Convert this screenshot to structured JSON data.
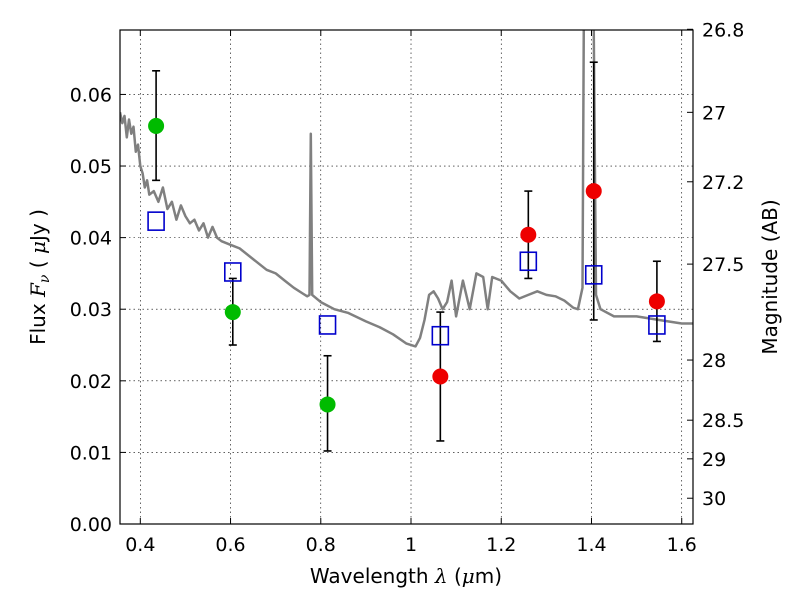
{
  "chart_data": {
    "type": "scatter",
    "title": "",
    "xlabel": "Wavelength  λ (μm)",
    "ylabel": "Flux  F_ν  ( μJy )",
    "y2label": "Magnitude (AB)",
    "xlim": [
      0.355,
      1.625
    ],
    "ylim": [
      0.0,
      0.069
    ],
    "grid": true,
    "x_ticks": [
      0.4,
      0.6,
      0.8,
      1.0,
      1.2,
      1.4,
      1.6
    ],
    "x_tick_labels": [
      "0.4",
      "0.6",
      "0.8",
      "1",
      "1.2",
      "1.4",
      "1.6"
    ],
    "y_ticks": [
      0.0,
      0.01,
      0.02,
      0.03,
      0.04,
      0.05,
      0.06
    ],
    "y_tick_labels": [
      "0.00",
      "0.01",
      "0.02",
      "0.03",
      "0.04",
      "0.05",
      "0.06"
    ],
    "y2_ticks": [
      {
        "label": "26.8",
        "flux": 0.0691
      },
      {
        "label": "27",
        "flux": 0.0575
      },
      {
        "label": "27.2",
        "flux": 0.0478
      },
      {
        "label": "27.5",
        "flux": 0.0363
      },
      {
        "label": "28",
        "flux": 0.0229
      },
      {
        "label": "28.5",
        "flux": 0.0145
      },
      {
        "label": "29",
        "flux": 0.0091
      },
      {
        "label": "30",
        "flux": 0.0036
      }
    ],
    "colors": {
      "sed": "#808080",
      "model_box": "#0000cc",
      "optical": "#00bb00",
      "nir": "#ee0000",
      "errorbar": "#000000"
    },
    "series": [
      {
        "type": "line",
        "points": [
          [
            0.355,
            0.0575
          ],
          [
            0.36,
            0.056
          ],
          [
            0.365,
            0.057
          ],
          [
            0.37,
            0.054
          ],
          [
            0.375,
            0.0565
          ],
          [
            0.38,
            0.0545
          ],
          [
            0.385,
            0.0555
          ],
          [
            0.39,
            0.052
          ],
          [
            0.395,
            0.053
          ],
          [
            0.4,
            0.05
          ],
          [
            0.405,
            0.049
          ],
          [
            0.41,
            0.047
          ],
          [
            0.415,
            0.048
          ],
          [
            0.42,
            0.046
          ],
          [
            0.43,
            0.0465
          ],
          [
            0.44,
            0.045
          ],
          [
            0.45,
            0.047
          ],
          [
            0.46,
            0.044
          ],
          [
            0.47,
            0.045
          ],
          [
            0.48,
            0.0425
          ],
          [
            0.49,
            0.0445
          ],
          [
            0.5,
            0.043
          ],
          [
            0.51,
            0.042
          ],
          [
            0.52,
            0.0425
          ],
          [
            0.53,
            0.041
          ],
          [
            0.54,
            0.042
          ],
          [
            0.55,
            0.04
          ],
          [
            0.56,
            0.0415
          ],
          [
            0.57,
            0.04
          ],
          [
            0.58,
            0.0395
          ],
          [
            0.6,
            0.039
          ],
          [
            0.62,
            0.0385
          ],
          [
            0.65,
            0.037
          ],
          [
            0.68,
            0.0355
          ],
          [
            0.7,
            0.035
          ],
          [
            0.72,
            0.034
          ],
          [
            0.74,
            0.033
          ],
          [
            0.76,
            0.0322
          ],
          [
            0.77,
            0.0318
          ],
          [
            0.775,
            0.032
          ],
          [
            0.778,
            0.0545
          ],
          [
            0.781,
            0.032
          ],
          [
            0.8,
            0.031
          ],
          [
            0.83,
            0.03
          ],
          [
            0.86,
            0.0295
          ],
          [
            0.9,
            0.0283
          ],
          [
            0.93,
            0.0275
          ],
          [
            0.96,
            0.0265
          ],
          [
            0.99,
            0.0252
          ],
          [
            1.01,
            0.0248
          ],
          [
            1.02,
            0.026
          ],
          [
            1.03,
            0.0285
          ],
          [
            1.04,
            0.032
          ],
          [
            1.05,
            0.0325
          ],
          [
            1.06,
            0.0315
          ],
          [
            1.07,
            0.03
          ],
          [
            1.08,
            0.031
          ],
          [
            1.09,
            0.034
          ],
          [
            1.1,
            0.029
          ],
          [
            1.115,
            0.034
          ],
          [
            1.13,
            0.03
          ],
          [
            1.145,
            0.035
          ],
          [
            1.16,
            0.0345
          ],
          [
            1.17,
            0.03
          ],
          [
            1.18,
            0.0345
          ],
          [
            1.2,
            0.034
          ],
          [
            1.22,
            0.0325
          ],
          [
            1.24,
            0.0315
          ],
          [
            1.26,
            0.032
          ],
          [
            1.28,
            0.0325
          ],
          [
            1.3,
            0.032
          ],
          [
            1.32,
            0.0318
          ],
          [
            1.34,
            0.0312
          ],
          [
            1.36,
            0.0302
          ],
          [
            1.37,
            0.03
          ],
          [
            1.38,
            0.033
          ],
          [
            1.383,
            0.07
          ],
          [
            1.4,
            0.07
          ],
          [
            1.405,
            0.07
          ],
          [
            1.41,
            0.032
          ],
          [
            1.42,
            0.03
          ],
          [
            1.45,
            0.029
          ],
          [
            1.5,
            0.029
          ],
          [
            1.55,
            0.0285
          ],
          [
            1.6,
            0.028
          ],
          [
            1.625,
            0.028
          ]
        ]
      },
      {
        "type": "scatter",
        "marker": "square",
        "points": [
          [
            0.435,
            0.0423
          ],
          [
            0.605,
            0.0352
          ],
          [
            0.815,
            0.0278
          ],
          [
            1.065,
            0.0263
          ],
          [
            1.26,
            0.0367
          ],
          [
            1.405,
            0.0348
          ],
          [
            1.545,
            0.0278
          ]
        ]
      },
      {
        "type": "scatter",
        "marker": "circle",
        "points": [
          {
            "x": 0.435,
            "y": 0.0556,
            "err_low": 0.048,
            "err_high": 0.0633
          },
          {
            "x": 0.605,
            "y": 0.0296,
            "err_low": 0.025,
            "err_high": 0.0343
          },
          {
            "x": 0.815,
            "y": 0.0167,
            "err_low": 0.0102,
            "err_high": 0.0235
          }
        ]
      },
      {
        "type": "scatter",
        "marker": "circle",
        "points": [
          {
            "x": 1.065,
            "y": 0.0206,
            "err_low": 0.0116,
            "err_high": 0.0296
          },
          {
            "x": 1.26,
            "y": 0.0404,
            "err_low": 0.0343,
            "err_high": 0.0465
          },
          {
            "x": 1.405,
            "y": 0.0465,
            "err_low": 0.0285,
            "err_high": 0.0645
          },
          {
            "x": 1.545,
            "y": 0.0311,
            "err_low": 0.0255,
            "err_high": 0.0367
          }
        ]
      }
    ]
  }
}
